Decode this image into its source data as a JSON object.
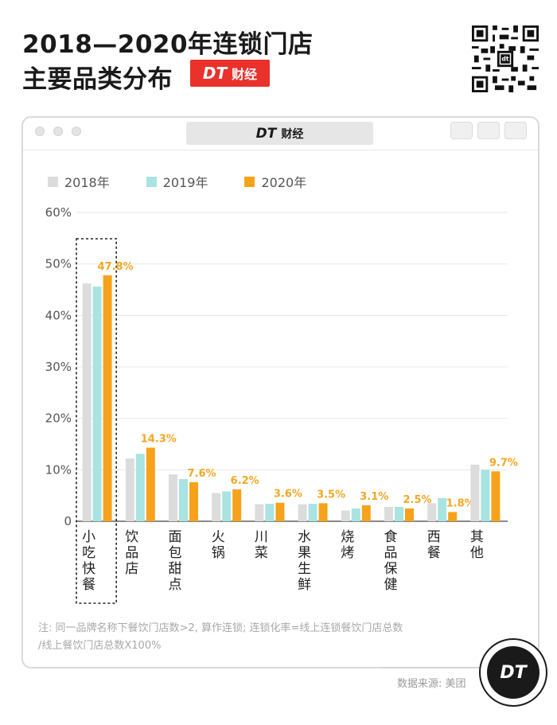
{
  "header": {
    "title_line1": "2018—2020年连锁门店",
    "title_line2": "主要品类分布",
    "brand_latin": "DT",
    "brand_cn": "财经"
  },
  "window": {
    "title_latin": "DT",
    "title_cn": "财经"
  },
  "colors": {
    "2018": "#dcdcdc",
    "2019": "#a9e3e2",
    "2020": "#f7a21b",
    "label": "#f5a623",
    "brand_red": "#e8322b"
  },
  "chart_data": {
    "type": "bar",
    "categories": [
      "小吃快餐",
      "饮品店",
      "面包甜点",
      "火锅",
      "川菜",
      "水果生鲜",
      "烧烤",
      "食品保健",
      "西餐",
      "其他"
    ],
    "series": [
      {
        "name": "2018年",
        "values": [
          46.2,
          12.2,
          9.1,
          5.5,
          3.3,
          3.3,
          2.1,
          2.8,
          3.5,
          11.0
        ]
      },
      {
        "name": "2019年",
        "values": [
          45.6,
          13.1,
          8.2,
          5.8,
          3.4,
          3.4,
          2.5,
          2.8,
          4.5,
          10.0
        ]
      },
      {
        "name": "2020年",
        "values": [
          47.8,
          14.3,
          7.6,
          6.2,
          3.6,
          3.5,
          3.1,
          2.5,
          1.8,
          9.7
        ]
      }
    ],
    "data_labels": [
      "47.8%",
      "14.3%",
      "7.6%",
      "6.2%",
      "3.6%",
      "3.5%",
      "3.1%",
      "2.5%",
      "1.8%",
      "9.7%"
    ],
    "y_ticks": [
      "0",
      "10%",
      "20%",
      "30%",
      "40%",
      "50%",
      "60%"
    ],
    "ylim": [
      0,
      60
    ],
    "legend_position": "top-left",
    "highlight_category": "小吃快餐"
  },
  "footer": {
    "note_line1": "注: 同一品牌名称下餐饮门店数>2, 算作连锁; 连锁化率=线上连锁餐饮门店总数",
    "note_line2": "/线上餐饮门店总数X100%",
    "source": "数据来源: 美团",
    "logo_text": "DT"
  }
}
